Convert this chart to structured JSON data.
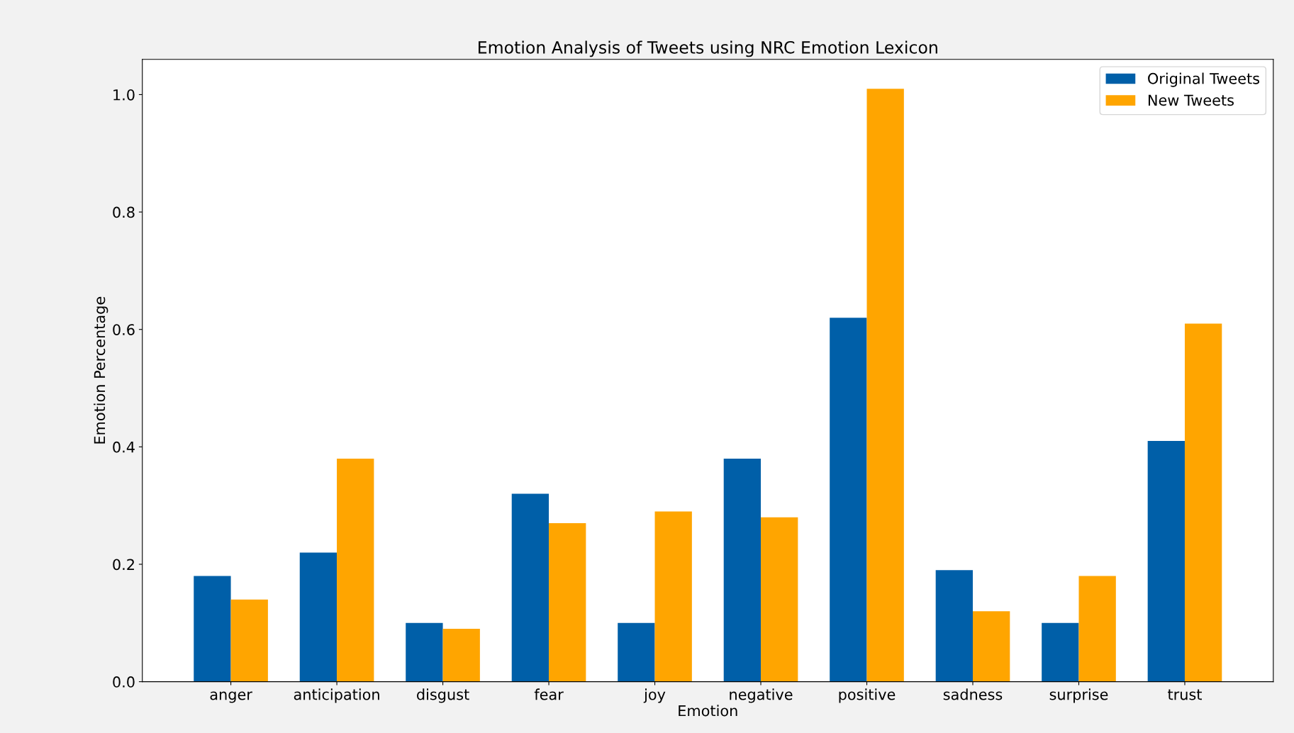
{
  "chart_data": {
    "type": "bar",
    "title": "Emotion Analysis of Tweets using NRC Emotion Lexicon",
    "xlabel": "Emotion",
    "ylabel": "Emotion Percentage",
    "categories": [
      "anger",
      "anticipation",
      "disgust",
      "fear",
      "joy",
      "negative",
      "positive",
      "sadness",
      "surprise",
      "trust"
    ],
    "series": [
      {
        "name": "Original Tweets",
        "color": "#005fa8",
        "values": [
          0.18,
          0.22,
          0.1,
          0.32,
          0.1,
          0.38,
          0.62,
          0.19,
          0.1,
          0.41
        ]
      },
      {
        "name": "New Tweets",
        "color": "#ffa500",
        "values": [
          0.14,
          0.38,
          0.09,
          0.27,
          0.29,
          0.28,
          1.01,
          0.12,
          0.18,
          0.61
        ]
      }
    ],
    "ylim": [
      0,
      1.06
    ],
    "yticks": [
      {
        "value": 0,
        "label": "0.0"
      },
      0.2,
      0.4,
      0.6,
      0.8,
      {
        "value": 1,
        "label": "1.0"
      }
    ],
    "grid": false,
    "legend": "top right"
  }
}
